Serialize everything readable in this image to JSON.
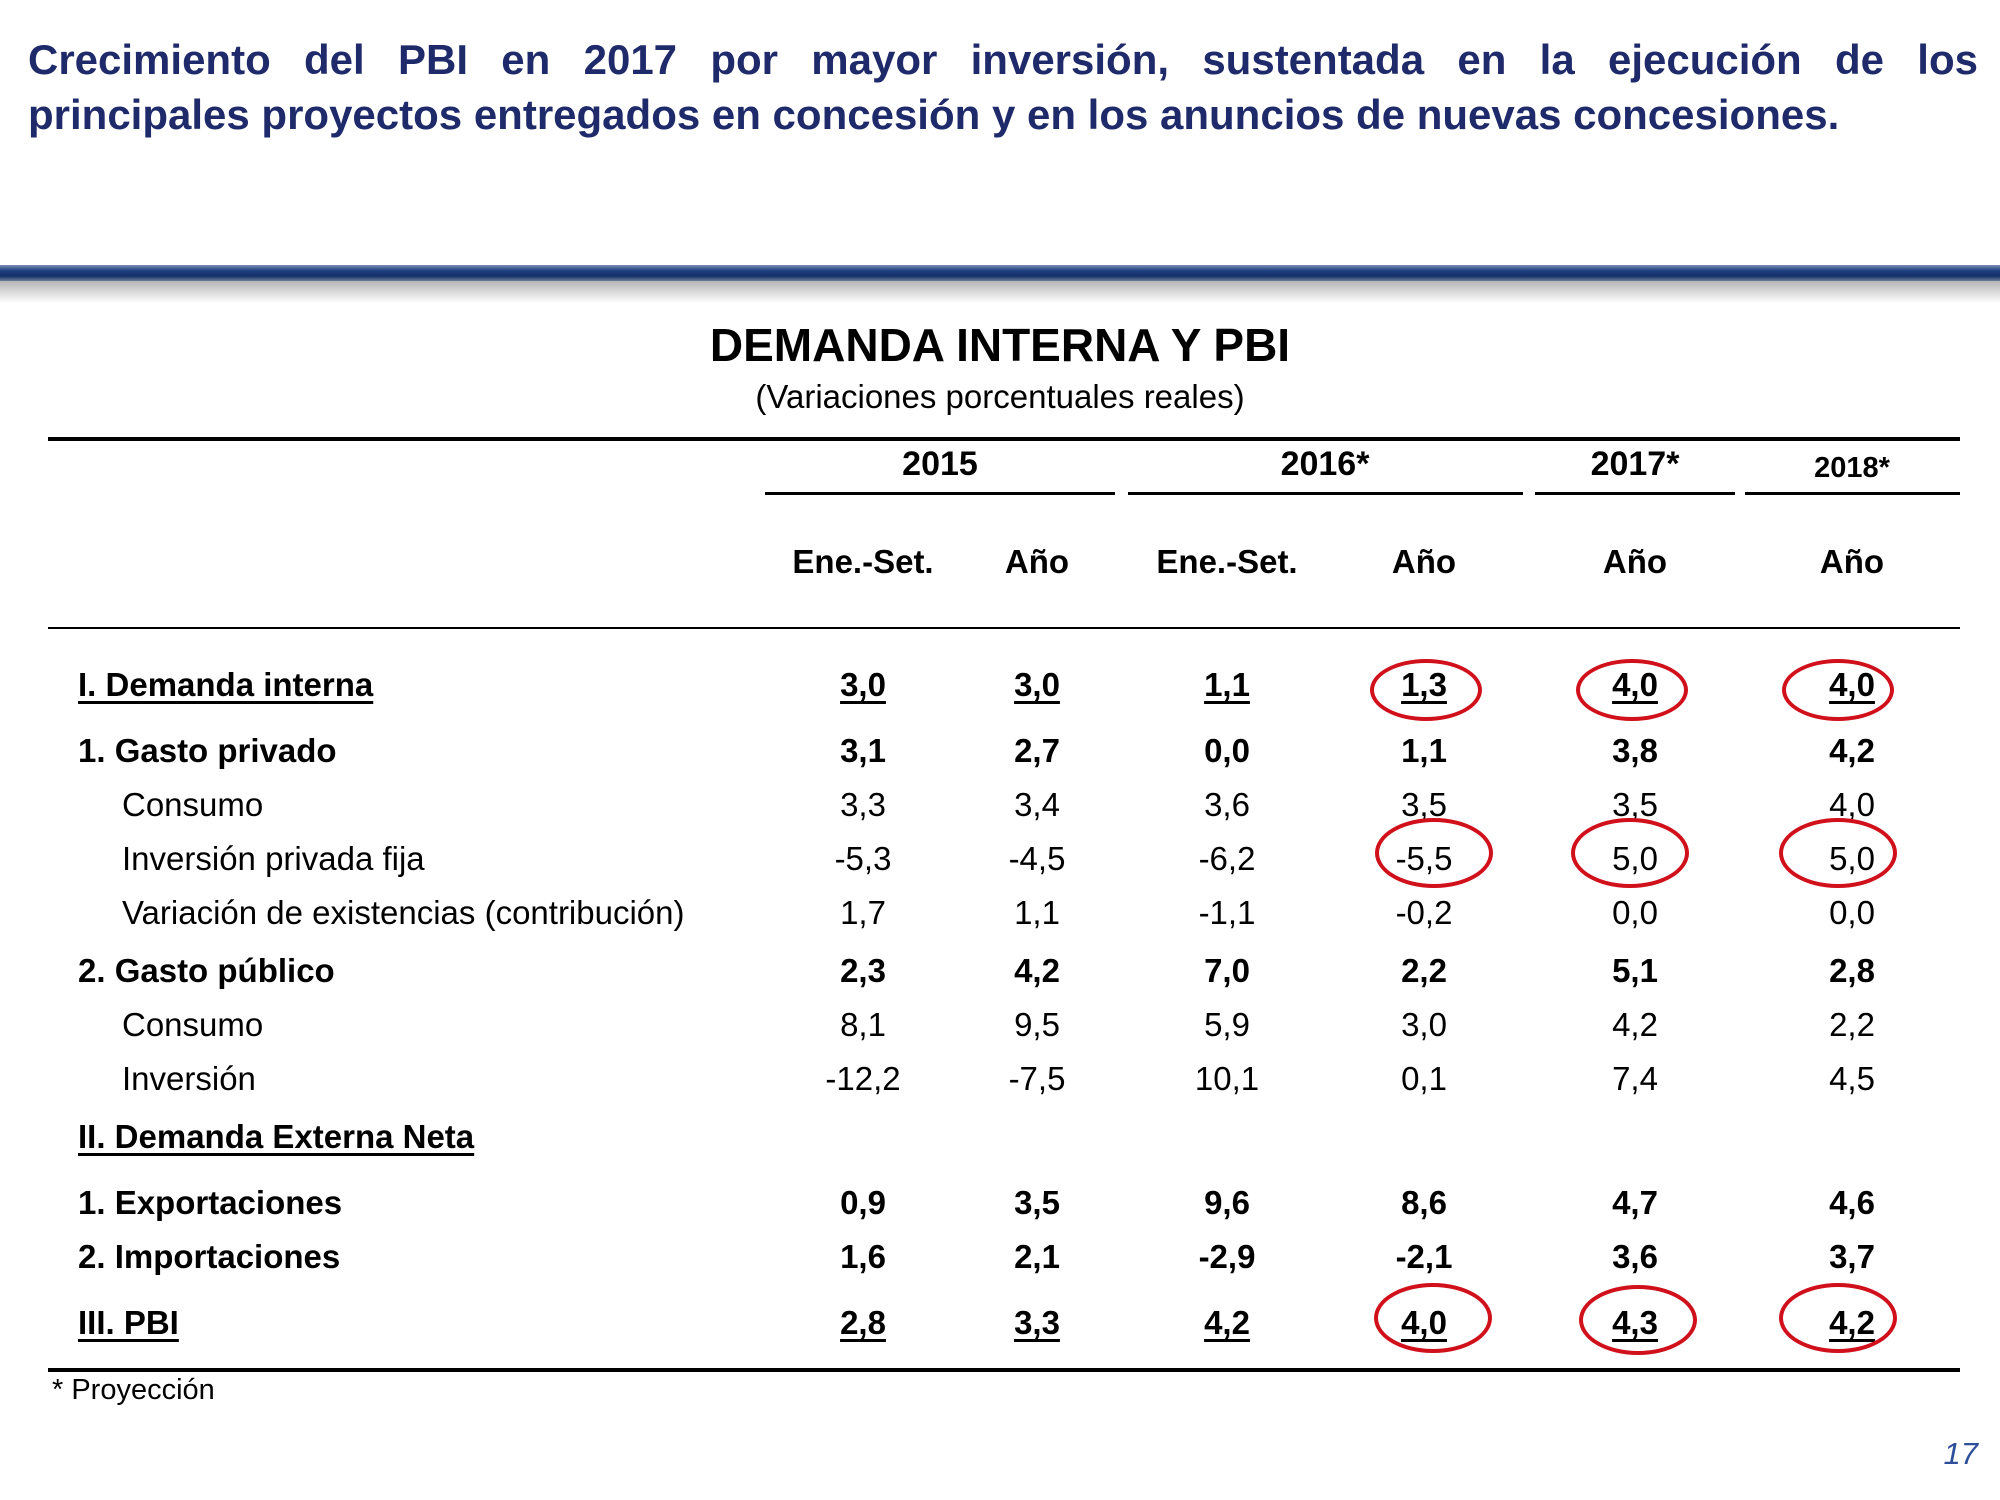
{
  "headline": {
    "line1": "Crecimiento del PBI en 2017 por mayor inversión, sustentada en la ejecución de los",
    "line2": "principales proyectos entregados en concesión y en los anuncios de nuevas concesiones."
  },
  "table": {
    "title": "DEMANDA INTERNA Y PBI",
    "subtitle": "(Variaciones porcentuales reales)",
    "year_headers": [
      "2015",
      "2016*",
      "2017*",
      "2018*"
    ],
    "period_headers": [
      "Ene.-Set.",
      "Año",
      "Ene.-Set.",
      "Año",
      "Año",
      "Año"
    ],
    "rows": [
      {
        "label": "I. Demanda interna",
        "values": [
          "3,0",
          "3,0",
          "1,1",
          "1,3",
          "4,0",
          "4,0"
        ]
      },
      {
        "label": "1. Gasto privado",
        "values": [
          "3,1",
          "2,7",
          "0,0",
          "1,1",
          "3,8",
          "4,2"
        ]
      },
      {
        "label": "Consumo",
        "values": [
          "3,3",
          "3,4",
          "3,6",
          "3,5",
          "3,5",
          "4,0"
        ]
      },
      {
        "label": "Inversión privada fija",
        "values": [
          "-5,3",
          "-4,5",
          "-6,2",
          "-5,5",
          "5,0",
          "5,0"
        ]
      },
      {
        "label": "Variación de existencias (contribución)",
        "values": [
          "1,7",
          "1,1",
          "-1,1",
          "-0,2",
          "0,0",
          "0,0"
        ]
      },
      {
        "label": "2. Gasto público",
        "values": [
          "2,3",
          "4,2",
          "7,0",
          "2,2",
          "5,1",
          "2,8"
        ]
      },
      {
        "label": "Consumo",
        "values": [
          "8,1",
          "9,5",
          "5,9",
          "3,0",
          "4,2",
          "2,2"
        ]
      },
      {
        "label": "Inversión",
        "values": [
          "-12,2",
          "-7,5",
          "10,1",
          "0,1",
          "7,4",
          "4,5"
        ]
      },
      {
        "label": "II. Demanda Externa Neta",
        "values": []
      },
      {
        "label": "1. Exportaciones",
        "values": [
          "0,9",
          "3,5",
          "9,6",
          "8,6",
          "4,7",
          "4,6"
        ]
      },
      {
        "label": "2. Importaciones",
        "values": [
          "1,6",
          "2,1",
          "-2,9",
          "-2,1",
          "3,6",
          "3,7"
        ]
      },
      {
        "label": "III. PBI",
        "values": [
          "2,8",
          "3,3",
          "4,2",
          "4,0",
          "4,3",
          "4,2"
        ]
      }
    ],
    "footnote": "* Proyección"
  },
  "page_number": "17",
  "colors": {
    "headline": "#1f2a6b",
    "highlight_circle": "#d0101a",
    "page_number": "#2d4e9a"
  }
}
